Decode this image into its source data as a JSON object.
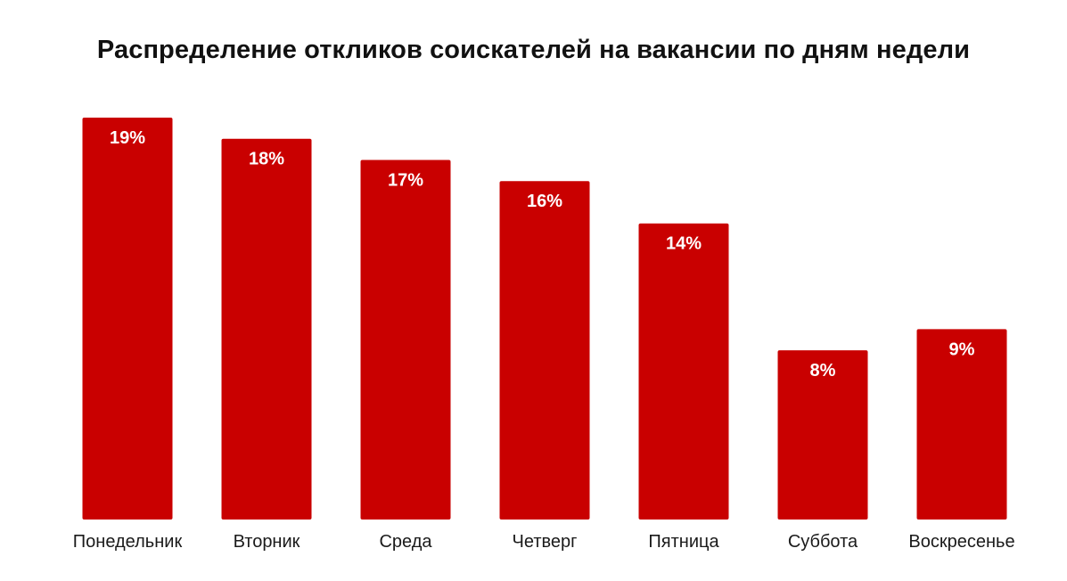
{
  "chart_data": {
    "type": "bar",
    "title": "Распределение откликов соискателей на вакансии по дням недели",
    "categories": [
      "Понедельник",
      "Вторник",
      "Среда",
      "Четверг",
      "Пятница",
      "Суббота",
      "Воскресенье"
    ],
    "values": [
      19,
      18,
      17,
      16,
      14,
      8,
      9
    ],
    "value_labels": [
      "19%",
      "18%",
      "17%",
      "16%",
      "14%",
      "8%",
      "9%"
    ],
    "unit": "%",
    "ylim": [
      0,
      19
    ],
    "grid": false,
    "legend": "none",
    "bar_color": "#c90000",
    "label_color": "#ffffff"
  }
}
